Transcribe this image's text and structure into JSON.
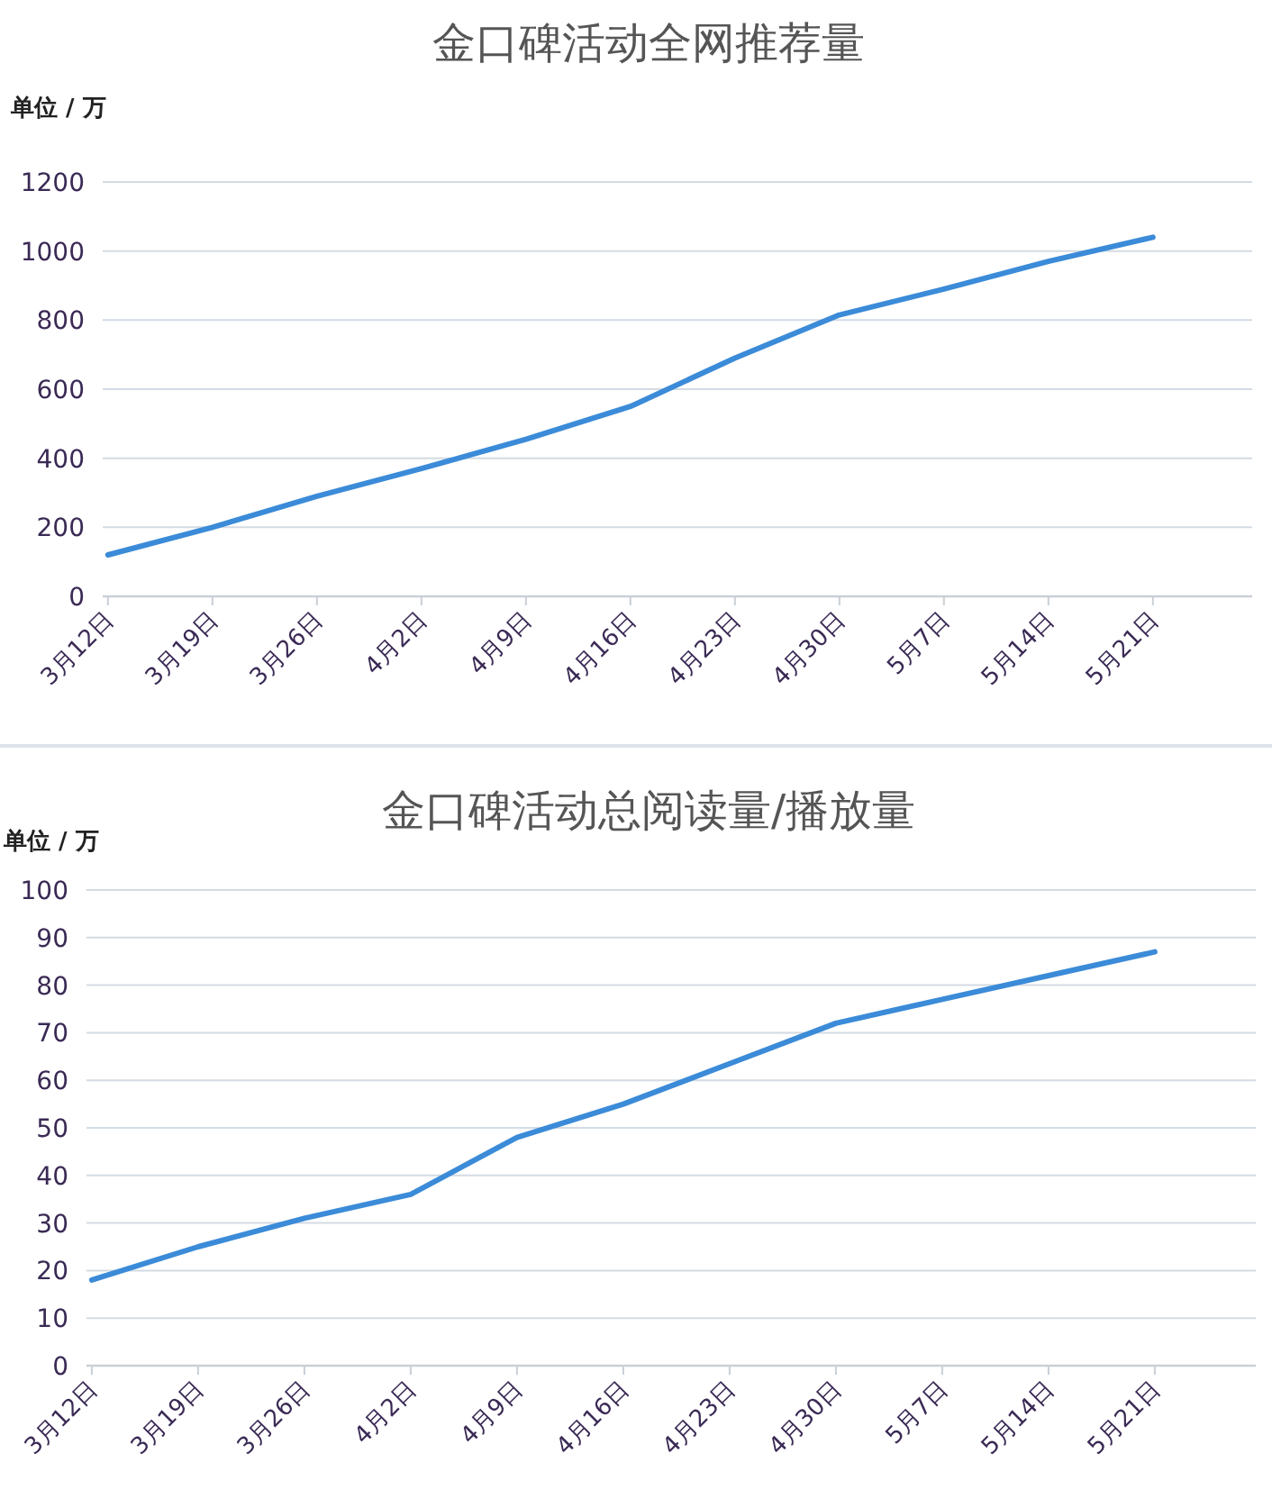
{
  "chart_data": [
    {
      "type": "line",
      "title": "金口碑活动全网推荐量",
      "ylabel": "单位 / 万",
      "categories": [
        "3月12日",
        "3月19日",
        "3月26日",
        "4月2日",
        "4月9日",
        "4月16日",
        "4月23日",
        "4月30日",
        "5月7日",
        "5月14日",
        "5月21日"
      ],
      "series": [
        {
          "color": "#3b8bd8",
          "values": [
            120,
            200,
            290,
            370,
            455,
            550,
            690,
            815,
            890,
            970,
            1040
          ]
        }
      ],
      "ylim": [
        0,
        1200
      ],
      "yticks": [
        0,
        200,
        400,
        600,
        800,
        1000,
        1200
      ],
      "grid": "y"
    },
    {
      "type": "line",
      "title": "金口碑活动总阅读量/播放量",
      "ylabel": "单位 / 万",
      "categories": [
        "3月12日",
        "3月19日",
        "3月26日",
        "4月2日",
        "4月9日",
        "4月16日",
        "4月23日",
        "4月30日",
        "5月7日",
        "5月14日",
        "5月21日"
      ],
      "series": [
        {
          "color": "#3b8bd8",
          "values": [
            18,
            25,
            31,
            36,
            48,
            55,
            63.5,
            72,
            77,
            82,
            87
          ]
        }
      ],
      "ylim": [
        0,
        100
      ],
      "yticks": [
        0,
        10,
        20,
        30,
        40,
        50,
        60,
        70,
        80,
        90,
        100
      ],
      "grid": "y"
    }
  ]
}
